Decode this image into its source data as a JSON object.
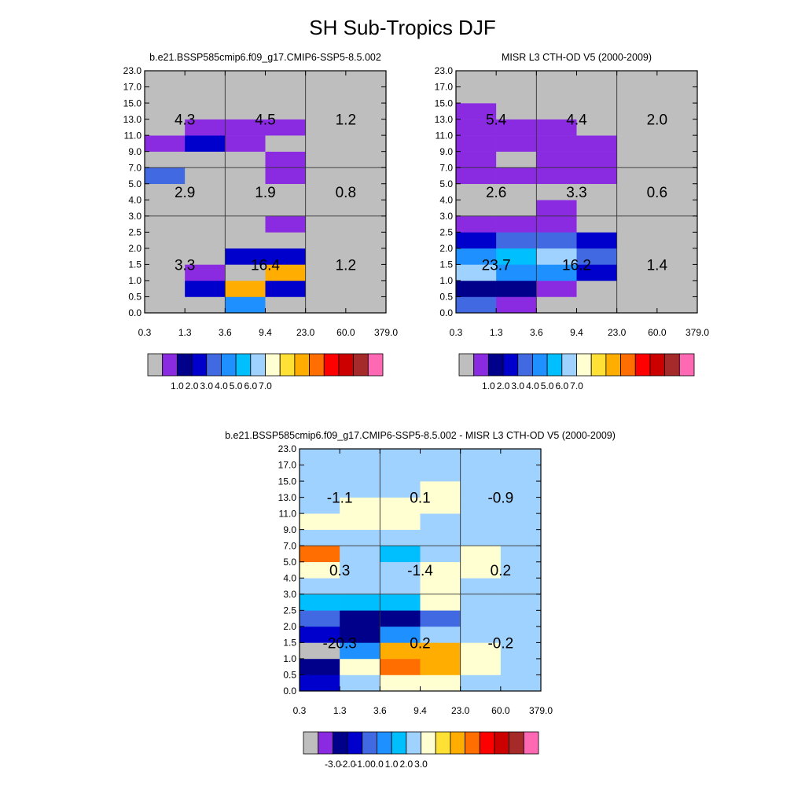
{
  "figure": {
    "title": "SH Sub-Tropics DJF"
  },
  "chart_data": [
    {
      "type": "heatmap",
      "title": "b.e21.BSSP585cmip6.f09_g17.CMIP6-SSP5-8.5.002",
      "xlabel": "",
      "ylabel": "",
      "x_tick_labels": [
        "0.3",
        "1.3",
        "3.6",
        "9.4",
        "23.0",
        "60.0",
        "379.0"
      ],
      "y_tick_labels": [
        "0.0",
        "0.5",
        "1.0",
        "1.5",
        "2.0",
        "2.5",
        "3.0",
        "4.0",
        "5.0",
        "7.0",
        "9.0",
        "11.0",
        "13.0",
        "15.0",
        "17.0",
        "23.0"
      ],
      "grid_rows": [
        "-------",
        "-------",
        "-------",
        "-------",
        "-------",
        "-------",
        "-------",
        "-----",
        "bb-----",
        "--a-----",
        "-------",
        "-------",
        "-------",
        "-------",
        "-------"
      ],
      "cells": [
        "--------------",
        "--------------",
        "--------------",
        "--------------",
        "--------------",
        "--------------",
        "--------------",
        "--------------",
        "--------------",
        "--------------",
        "--------------",
        "--------------",
        "--------------",
        "--------------",
        "--------------"
      ],
      "grid": [
        [
          "g",
          "g",
          "B",
          "g",
          "g",
          "g"
        ],
        [
          "g",
          "C",
          "A",
          "C",
          "g",
          "g"
        ],
        [
          "g",
          "P",
          "a",
          "A",
          "g",
          "g"
        ],
        [
          "g",
          "g",
          "C",
          "C",
          "g",
          "g"
        ],
        [
          "g",
          "g",
          "g",
          "g",
          "g",
          "g"
        ],
        [
          "g",
          "g",
          "g",
          "P",
          "g",
          "g"
        ],
        [
          "g",
          "g",
          "g",
          "g",
          "g",
          "g"
        ],
        [
          "g",
          "g",
          "g",
          "g",
          "g",
          "g"
        ],
        [
          "R",
          "g",
          "g",
          "P",
          "g",
          "g"
        ],
        [
          "g",
          "g",
          "g",
          "P",
          "g",
          "g"
        ],
        [
          "P",
          "C",
          "P",
          "g",
          "g",
          "g"
        ],
        [
          "g",
          "P",
          "P",
          "P",
          "g",
          "g"
        ],
        [
          "g",
          "g",
          "g",
          "g",
          "g",
          "g"
        ],
        [
          "g",
          "g",
          "g",
          "g",
          "g",
          "g"
        ],
        [
          "g",
          "g",
          "g",
          "g",
          "g",
          "g"
        ]
      ],
      "box_values": [
        [
          "3.3",
          "16.4",
          "1.2"
        ],
        [
          "2.9",
          "1.9",
          "0.8"
        ],
        [
          "4.3",
          "4.5",
          "1.2"
        ]
      ],
      "colorbar": {
        "colors": [
          "#bebebe",
          "#8a2be2",
          "#00008b",
          "#0000cd",
          "#4169e1",
          "#1e90ff",
          "#00bfff",
          "#a0d2ff",
          "#ffffd1",
          "#ffe135",
          "#ffad00",
          "#ff6e00",
          "#ff0000",
          "#cd0000",
          "#a52a2a",
          "#ff69b4"
        ],
        "labels": [
          "1.0",
          "2.0",
          "3.0",
          "4.0",
          "5.0",
          "6.0",
          "7.0"
        ]
      }
    },
    {
      "type": "heatmap",
      "title": "MISR L3 CTH-OD V5 (2000-2009)",
      "xlabel": "",
      "ylabel": "",
      "x_tick_labels": [
        "0.3",
        "1.3",
        "3.6",
        "9.4",
        "23.0",
        "60.0",
        "379.0"
      ],
      "y_tick_labels": [
        "0.0",
        "0.5",
        "1.0",
        "1.5",
        "2.0",
        "2.5",
        "3.0",
        "4.0",
        "5.0",
        "7.0",
        "9.0",
        "11.0",
        "13.0",
        "15.0",
        "17.0",
        "23.0"
      ],
      "grid": [
        [
          "R",
          "P",
          "g",
          "g",
          "g",
          "g"
        ],
        [
          "D",
          "D",
          "P",
          "g",
          "g",
          "g"
        ],
        [
          "L",
          "B",
          "B",
          "C",
          "g",
          "g"
        ],
        [
          "B",
          "S",
          "L",
          "R",
          "g",
          "g"
        ],
        [
          "C",
          "R",
          "R",
          "C",
          "g",
          "g"
        ],
        [
          "P",
          "P",
          "P",
          "g",
          "g",
          "g"
        ],
        [
          "g",
          "g",
          "P",
          "g",
          "g",
          "g"
        ],
        [
          "g",
          "g",
          "g",
          "g",
          "g",
          "g"
        ],
        [
          "P",
          "P",
          "P",
          "P",
          "g",
          "g"
        ],
        [
          "P",
          "g",
          "P",
          "P",
          "g",
          "g"
        ],
        [
          "P",
          "P",
          "P",
          "P",
          "g",
          "g"
        ],
        [
          "P",
          "P",
          "P",
          "g",
          "g",
          "g"
        ],
        [
          "P",
          "g",
          "g",
          "g",
          "g",
          "g"
        ],
        [
          "g",
          "g",
          "g",
          "g",
          "g",
          "g"
        ],
        [
          "g",
          "g",
          "g",
          "g",
          "g",
          "g"
        ]
      ],
      "box_values": [
        [
          "23.7",
          "16.2",
          "1.4"
        ],
        [
          "2.6",
          "3.3",
          "0.6"
        ],
        [
          "5.4",
          "4.4",
          "2.0"
        ]
      ],
      "colorbar": {
        "colors": [
          "#bebebe",
          "#8a2be2",
          "#00008b",
          "#0000cd",
          "#4169e1",
          "#1e90ff",
          "#00bfff",
          "#a0d2ff",
          "#ffffd1",
          "#ffe135",
          "#ffad00",
          "#ff6e00",
          "#ff0000",
          "#cd0000",
          "#a52a2a",
          "#ff69b4"
        ],
        "labels": [
          "1.0",
          "2.0",
          "3.0",
          "4.0",
          "5.0",
          "6.0",
          "7.0"
        ]
      }
    },
    {
      "type": "heatmap",
      "title": "b.e21.BSSP585cmip6.f09_g17.CMIP6-SSP5-8.5.002 - MISR L3 CTH-OD V5 (2000-2009)",
      "xlabel": "",
      "ylabel": "",
      "x_tick_labels": [
        "0.3",
        "1.3",
        "3.6",
        "9.4",
        "23.0",
        "60.0",
        "379.0"
      ],
      "y_tick_labels": [
        "0.0",
        "0.5",
        "1.0",
        "1.5",
        "2.0",
        "2.5",
        "3.0",
        "4.0",
        "5.0",
        "7.0",
        "9.0",
        "11.0",
        "13.0",
        "15.0",
        "17.0",
        "23.0"
      ],
      "grid": [
        [
          "C",
          "L",
          "Y",
          "Y",
          "L",
          "L"
        ],
        [
          "D",
          "Y",
          "O",
          "A",
          "Y",
          "L"
        ],
        [
          "g",
          "B",
          "A",
          "A",
          "Y",
          "L"
        ],
        [
          "C",
          "D",
          "B",
          "L",
          "L",
          "L"
        ],
        [
          "R",
          "D",
          "D",
          "R",
          "L",
          "L"
        ],
        [
          "S",
          "S",
          "S",
          "Y",
          "L",
          "L"
        ],
        [
          "L",
          "L",
          "L",
          "Y",
          "L",
          "L"
        ],
        [
          "Y",
          "L",
          "L",
          "Y",
          "Y",
          "L"
        ],
        [
          "O",
          "L",
          "S",
          "L",
          "Y",
          "L"
        ],
        [
          "L",
          "L",
          "L",
          "L",
          "L",
          "L"
        ],
        [
          "Y",
          "Y",
          "Y",
          "L",
          "L",
          "L"
        ],
        [
          "L",
          "Y",
          "Y",
          "Y",
          "L",
          "L"
        ],
        [
          "L",
          "L",
          "L",
          "Y",
          "L",
          "L"
        ],
        [
          "L",
          "L",
          "L",
          "L",
          "L",
          "L"
        ],
        [
          "L",
          "L",
          "L",
          "L",
          "L",
          "L"
        ]
      ],
      "box_values": [
        [
          "-20.3",
          "0.2",
          "-0.2"
        ],
        [
          "0.3",
          "-1.4",
          "0.2"
        ],
        [
          "-1.1",
          "0.1",
          "-0.9"
        ]
      ],
      "colorbar": {
        "colors": [
          "#bebebe",
          "#8a2be2",
          "#00008b",
          "#0000cd",
          "#4169e1",
          "#1e90ff",
          "#00bfff",
          "#a0d2ff",
          "#ffffd1",
          "#ffe135",
          "#ffad00",
          "#ff6e00",
          "#ff0000",
          "#cd0000",
          "#a52a2a",
          "#ff69b4"
        ],
        "labels": [
          "-3.0",
          "-2.0",
          "-1.0",
          "0.0",
          "1.0",
          "2.0",
          "3.0"
        ]
      }
    }
  ],
  "palette": {
    "g": "#bebebe",
    "P": "#8a2be2",
    "D": "#00008b",
    "C": "#0000cd",
    "R": "#4169e1",
    "B": "#1e90ff",
    "S": "#00bfff",
    "L": "#a0d2ff",
    "Y": "#ffffd1",
    "A": "#ffad00",
    "O": "#ff6e00"
  }
}
